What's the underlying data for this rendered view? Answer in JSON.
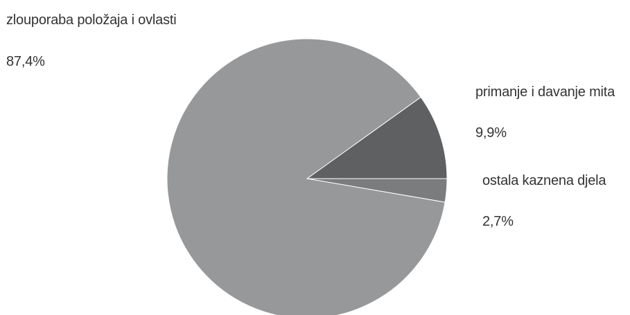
{
  "chart_data": {
    "type": "pie",
    "slices": [
      {
        "name": "zlouporaba položaja i ovlasti",
        "value": 87.4,
        "label": "87,4%",
        "color": "#97989a"
      },
      {
        "name": "primanje i davanje mita",
        "value": 9.9,
        "label": "9,9%",
        "color": "#5f6062"
      },
      {
        "name": "ostala kaznena djela",
        "value": 2.7,
        "label": "2,7%",
        "color": "#7b7c7e"
      }
    ],
    "stroke_color": "#ffffff"
  }
}
